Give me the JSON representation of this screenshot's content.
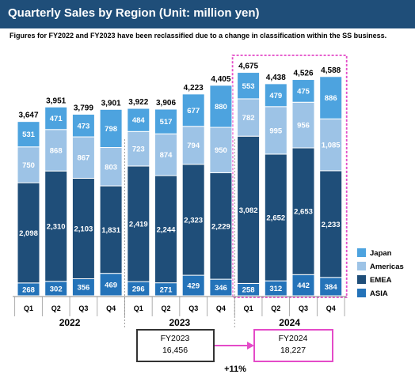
{
  "header": {
    "title": "Quarterly Sales by Region (Unit: million yen)",
    "note": "Figures for FY2022 and FY2023 have been reclassified due to a change in classification within the SS business."
  },
  "colors": {
    "title_bg": "#1f4e79",
    "ASIA": "#2473b9",
    "EMEA": "#1f4e79",
    "Americas": "#9dc3e6",
    "Japan": "#4da3df",
    "highlight": "#e44bc8"
  },
  "chart_data": {
    "type": "bar",
    "stacked": true,
    "title": "Quarterly Sales by Region (Unit: million yen)",
    "unit": "million yen",
    "categories": [
      "Q1",
      "Q2",
      "Q3",
      "Q4",
      "Q1",
      "Q2",
      "Q3",
      "Q4",
      "Q1",
      "Q2",
      "Q3",
      "Q4"
    ],
    "years": [
      {
        "label": "2022",
        "count": 4
      },
      {
        "label": "2023",
        "count": 4
      },
      {
        "label": "2024",
        "count": 4
      }
    ],
    "series": [
      {
        "name": "ASIA",
        "values": [
          268,
          302,
          356,
          469,
          296,
          271,
          429,
          346,
          258,
          312,
          442,
          384
        ]
      },
      {
        "name": "EMEA",
        "values": [
          2098,
          2310,
          2103,
          1831,
          2419,
          2244,
          2323,
          2229,
          3082,
          2652,
          2653,
          2233
        ]
      },
      {
        "name": "Americas",
        "values": [
          750,
          868,
          867,
          803,
          723,
          874,
          794,
          950,
          782,
          995,
          956,
          "1,085"
        ]
      },
      {
        "name": "Japan",
        "values": [
          531,
          471,
          473,
          798,
          484,
          517,
          677,
          880,
          553,
          479,
          475,
          886
        ]
      }
    ],
    "totals": [
      "3,647",
      "3,951",
      "3,799",
      "3,901",
      "3,922",
      "3,906",
      "4,223",
      "4,405",
      "4,675",
      "4,438",
      "4,526",
      "4,588"
    ],
    "segment_labels": {
      "ASIA": [
        "268",
        "302",
        "356",
        "469",
        "296",
        "271",
        "429",
        "346",
        "258",
        "312",
        "442",
        "384"
      ],
      "EMEA": [
        "2,098",
        "2,310",
        "2,103",
        "1,831",
        "2,419",
        "2,244",
        "2,323",
        "2,229",
        "3,082",
        "2,652",
        "2,653",
        "2,233"
      ],
      "Americas": [
        "750",
        "868",
        "867",
        "803",
        "723",
        "874",
        "794",
        "950",
        "782",
        "995",
        "956",
        "1,085"
      ],
      "Japan": [
        "531",
        "471",
        "473",
        "798",
        "484",
        "517",
        "677",
        "880",
        "553",
        "479",
        "475",
        "886"
      ]
    },
    "legend": [
      "Japan",
      "Americas",
      "EMEA",
      "ASIA"
    ],
    "legend_position": "right",
    "ylim": [
      0,
      4800
    ],
    "grid": false,
    "highlight_year": "2024",
    "comparison": {
      "from": {
        "line1": "FY2023",
        "line2": "16,456"
      },
      "to": {
        "line1": "FY2024",
        "line2": "18,227"
      },
      "growth": "+11%"
    }
  }
}
